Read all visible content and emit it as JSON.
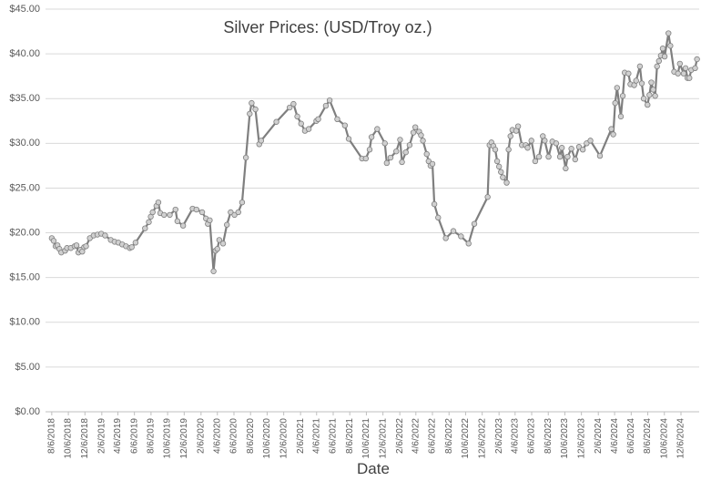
{
  "chart_data": {
    "type": "line",
    "title": "Silver Prices: (USD/Troy oz.)",
    "x_label": "Date",
    "color": "#7f7f7f",
    "marker_color": "#d0d0d0",
    "grid": true,
    "x": [
      "2018-08-06",
      "2018-08-13",
      "2018-08-20",
      "2018-08-27",
      "2018-09-03",
      "2018-09-10",
      "2018-09-24",
      "2018-10-01",
      "2018-10-15",
      "2018-10-29",
      "2018-11-05",
      "2018-11-12",
      "2018-11-19",
      "2018-11-26",
      "2018-12-03",
      "2018-12-10",
      "2018-12-24",
      "2019-01-07",
      "2019-01-21",
      "2019-02-04",
      "2019-02-18",
      "2019-03-11",
      "2019-03-25",
      "2019-04-08",
      "2019-04-22",
      "2019-05-06",
      "2019-05-20",
      "2019-05-27",
      "2019-06-10",
      "2019-07-15",
      "2019-07-29",
      "2019-08-05",
      "2019-08-12",
      "2019-08-26",
      "2019-09-02",
      "2019-09-09",
      "2019-09-23",
      "2019-10-14",
      "2019-11-04",
      "2019-11-11",
      "2019-12-02",
      "2020-01-06",
      "2020-01-20",
      "2020-02-10",
      "2020-02-24",
      "2020-03-02",
      "2020-03-09",
      "2020-03-23",
      "2020-03-30",
      "2020-04-06",
      "2020-04-13",
      "2020-04-27",
      "2020-05-11",
      "2020-05-25",
      "2020-06-08",
      "2020-06-22",
      "2020-07-06",
      "2020-07-20",
      "2020-08-03",
      "2020-08-10",
      "2020-08-24",
      "2020-09-07",
      "2020-09-14",
      "2020-11-09",
      "2020-12-28",
      "2021-01-11",
      "2021-01-25",
      "2021-02-08",
      "2021-02-22",
      "2021-03-08",
      "2021-04-05",
      "2021-04-12",
      "2021-05-10",
      "2021-05-24",
      "2021-06-21",
      "2021-07-19",
      "2021-08-02",
      "2021-09-20",
      "2021-10-04",
      "2021-10-18",
      "2021-10-25",
      "2021-11-15",
      "2021-12-13",
      "2021-12-20",
      "2022-01-03",
      "2022-01-24",
      "2022-02-07",
      "2022-02-14",
      "2022-02-28",
      "2022-03-14",
      "2022-03-28",
      "2022-04-04",
      "2022-04-18",
      "2022-04-25",
      "2022-05-02",
      "2022-05-16",
      "2022-05-23",
      "2022-05-30",
      "2022-06-06",
      "2022-06-13",
      "2022-06-27",
      "2022-07-25",
      "2022-08-22",
      "2022-09-19",
      "2022-10-17",
      "2022-11-07",
      "2022-12-26",
      "2023-01-02",
      "2023-01-09",
      "2023-01-16",
      "2023-01-23",
      "2023-01-30",
      "2023-02-06",
      "2023-02-13",
      "2023-02-20",
      "2023-03-06",
      "2023-03-13",
      "2023-03-20",
      "2023-03-27",
      "2023-04-10",
      "2023-04-17",
      "2023-05-01",
      "2023-05-15",
      "2023-05-22",
      "2023-06-05",
      "2023-06-19",
      "2023-07-03",
      "2023-07-17",
      "2023-07-24",
      "2023-08-07",
      "2023-08-21",
      "2023-09-04",
      "2023-09-18",
      "2023-09-25",
      "2023-10-09",
      "2023-10-16",
      "2023-10-30",
      "2023-11-13",
      "2023-11-27",
      "2023-12-11",
      "2023-12-25",
      "2024-01-08",
      "2024-02-12",
      "2024-03-25",
      "2024-04-01",
      "2024-04-08",
      "2024-04-15",
      "2024-04-29",
      "2024-05-06",
      "2024-05-13",
      "2024-05-27",
      "2024-06-03",
      "2024-06-17",
      "2024-06-24",
      "2024-07-08",
      "2024-07-15",
      "2024-07-22",
      "2024-08-05",
      "2024-08-12",
      "2024-08-19",
      "2024-08-26",
      "2024-09-02",
      "2024-09-09",
      "2024-09-16",
      "2024-09-23",
      "2024-09-30",
      "2024-10-07",
      "2024-10-21",
      "2024-10-28",
      "2024-11-11",
      "2024-11-25",
      "2024-12-02",
      "2024-12-16",
      "2024-12-23",
      "2024-12-30",
      "2025-01-06",
      "2025-01-13",
      "2025-01-27",
      "2025-02-03"
    ],
    "values": [
      19.4,
      19.1,
      18.5,
      18.6,
      18.2,
      17.8,
      18.0,
      18.3,
      18.3,
      18.5,
      18.6,
      17.8,
      18.1,
      17.9,
      18.4,
      18.5,
      19.4,
      19.7,
      19.8,
      19.9,
      19.7,
      19.2,
      19.0,
      18.9,
      18.7,
      18.5,
      18.3,
      18.4,
      18.9,
      20.5,
      21.2,
      21.8,
      22.3,
      23.0,
      23.4,
      22.2,
      22.0,
      22.0,
      22.6,
      21.3,
      20.8,
      22.7,
      22.6,
      22.3,
      21.6,
      21.0,
      21.4,
      15.7,
      18.0,
      18.2,
      19.2,
      18.8,
      20.9,
      22.3,
      22.0,
      22.3,
      23.4,
      28.4,
      33.3,
      34.5,
      33.8,
      29.9,
      30.3,
      32.4,
      34.0,
      34.4,
      33.0,
      32.2,
      31.4,
      31.6,
      32.5,
      32.7,
      34.2,
      34.8,
      32.7,
      32.0,
      30.5,
      28.3,
      28.3,
      29.3,
      30.7,
      31.6,
      30.0,
      27.8,
      28.4,
      29.1,
      30.4,
      27.9,
      29.0,
      29.8,
      31.2,
      31.8,
      31.3,
      30.9,
      30.3,
      28.8,
      28.0,
      27.5,
      27.7,
      23.2,
      21.7,
      19.4,
      20.2,
      19.6,
      18.8,
      21.0,
      24.0,
      29.8,
      30.1,
      29.7,
      29.3,
      28.0,
      27.4,
      26.8,
      26.2,
      25.6,
      29.3,
      30.8,
      31.5,
      31.4,
      31.9,
      29.8,
      29.8,
      29.5,
      30.3,
      28.0,
      28.5,
      30.8,
      30.3,
      28.5,
      30.2,
      30.0,
      28.5,
      29.5,
      27.2,
      28.5,
      29.4,
      28.2,
      29.6,
      29.3,
      30.0,
      30.3,
      28.6,
      31.6,
      31.0,
      34.5,
      36.2,
      33.0,
      35.3,
      37.9,
      37.8,
      36.6,
      36.5,
      37.0,
      38.6,
      36.7,
      35.0,
      34.3,
      35.4,
      36.8,
      36.0,
      35.3,
      38.6,
      39.2,
      39.8,
      40.6,
      39.7,
      42.3,
      40.9,
      38.0,
      37.8,
      38.9,
      37.8,
      38.4,
      37.3,
      37.3,
      38.2,
      38.4,
      39.4
    ],
    "xlim": [
      "2018-07-14",
      "2025-02-11"
    ],
    "xticks": [
      {
        "value": "2018-08-06",
        "label": "8/6/2018"
      },
      {
        "value": "2018-10-06",
        "label": "10/6/2018"
      },
      {
        "value": "2018-12-06",
        "label": "12/6/2018"
      },
      {
        "value": "2019-02-06",
        "label": "2/6/2019"
      },
      {
        "value": "2019-04-06",
        "label": "4/6/2019"
      },
      {
        "value": "2019-06-06",
        "label": "6/6/2019"
      },
      {
        "value": "2019-08-06",
        "label": "8/6/2019"
      },
      {
        "value": "2019-10-06",
        "label": "10/6/2019"
      },
      {
        "value": "2019-12-06",
        "label": "12/6/2019"
      },
      {
        "value": "2020-02-06",
        "label": "2/6/2020"
      },
      {
        "value": "2020-04-06",
        "label": "4/6/2020"
      },
      {
        "value": "2020-06-06",
        "label": "6/6/2020"
      },
      {
        "value": "2020-08-06",
        "label": "8/6/2020"
      },
      {
        "value": "2020-10-06",
        "label": "10/6/2020"
      },
      {
        "value": "2020-12-06",
        "label": "12/6/2020"
      },
      {
        "value": "2021-02-06",
        "label": "2/6/2021"
      },
      {
        "value": "2021-04-06",
        "label": "4/6/2021"
      },
      {
        "value": "2021-06-06",
        "label": "6/6/2021"
      },
      {
        "value": "2021-08-06",
        "label": "8/6/2021"
      },
      {
        "value": "2021-10-06",
        "label": "10/6/2021"
      },
      {
        "value": "2021-12-06",
        "label": "12/6/2021"
      },
      {
        "value": "2022-02-06",
        "label": "2/6/2022"
      },
      {
        "value": "2022-04-06",
        "label": "4/6/2022"
      },
      {
        "value": "2022-06-06",
        "label": "6/6/2022"
      },
      {
        "value": "2022-08-06",
        "label": "8/6/2022"
      },
      {
        "value": "2022-10-06",
        "label": "10/6/2022"
      },
      {
        "value": "2022-12-06",
        "label": "12/6/2022"
      },
      {
        "value": "2023-02-06",
        "label": "2/6/2023"
      },
      {
        "value": "2023-04-06",
        "label": "4/6/2023"
      },
      {
        "value": "2023-06-06",
        "label": "6/6/2023"
      },
      {
        "value": "2023-08-06",
        "label": "8/6/2023"
      },
      {
        "value": "2023-10-06",
        "label": "10/6/2023"
      },
      {
        "value": "2023-12-06",
        "label": "12/6/2023"
      },
      {
        "value": "2024-02-06",
        "label": "2/6/2024"
      },
      {
        "value": "2024-04-06",
        "label": "4/6/2024"
      },
      {
        "value": "2024-06-06",
        "label": "6/6/2024"
      },
      {
        "value": "2024-08-06",
        "label": "8/6/2024"
      },
      {
        "value": "2024-10-06",
        "label": "10/6/2024"
      },
      {
        "value": "2024-12-06",
        "label": "12/6/2024"
      }
    ],
    "ylim": [
      0,
      45
    ],
    "yticks": [
      {
        "value": 0,
        "label": "$0.00"
      },
      {
        "value": 5,
        "label": "$5.00"
      },
      {
        "value": 10,
        "label": "$10.00"
      },
      {
        "value": 15,
        "label": "$15.00"
      },
      {
        "value": 20,
        "label": "$20.00"
      },
      {
        "value": 25,
        "label": "$25.00"
      },
      {
        "value": 30,
        "label": "$30.00"
      },
      {
        "value": 35,
        "label": "$35.00"
      },
      {
        "value": 40,
        "label": "$40.00"
      },
      {
        "value": 45,
        "label": "$45.00"
      }
    ]
  }
}
